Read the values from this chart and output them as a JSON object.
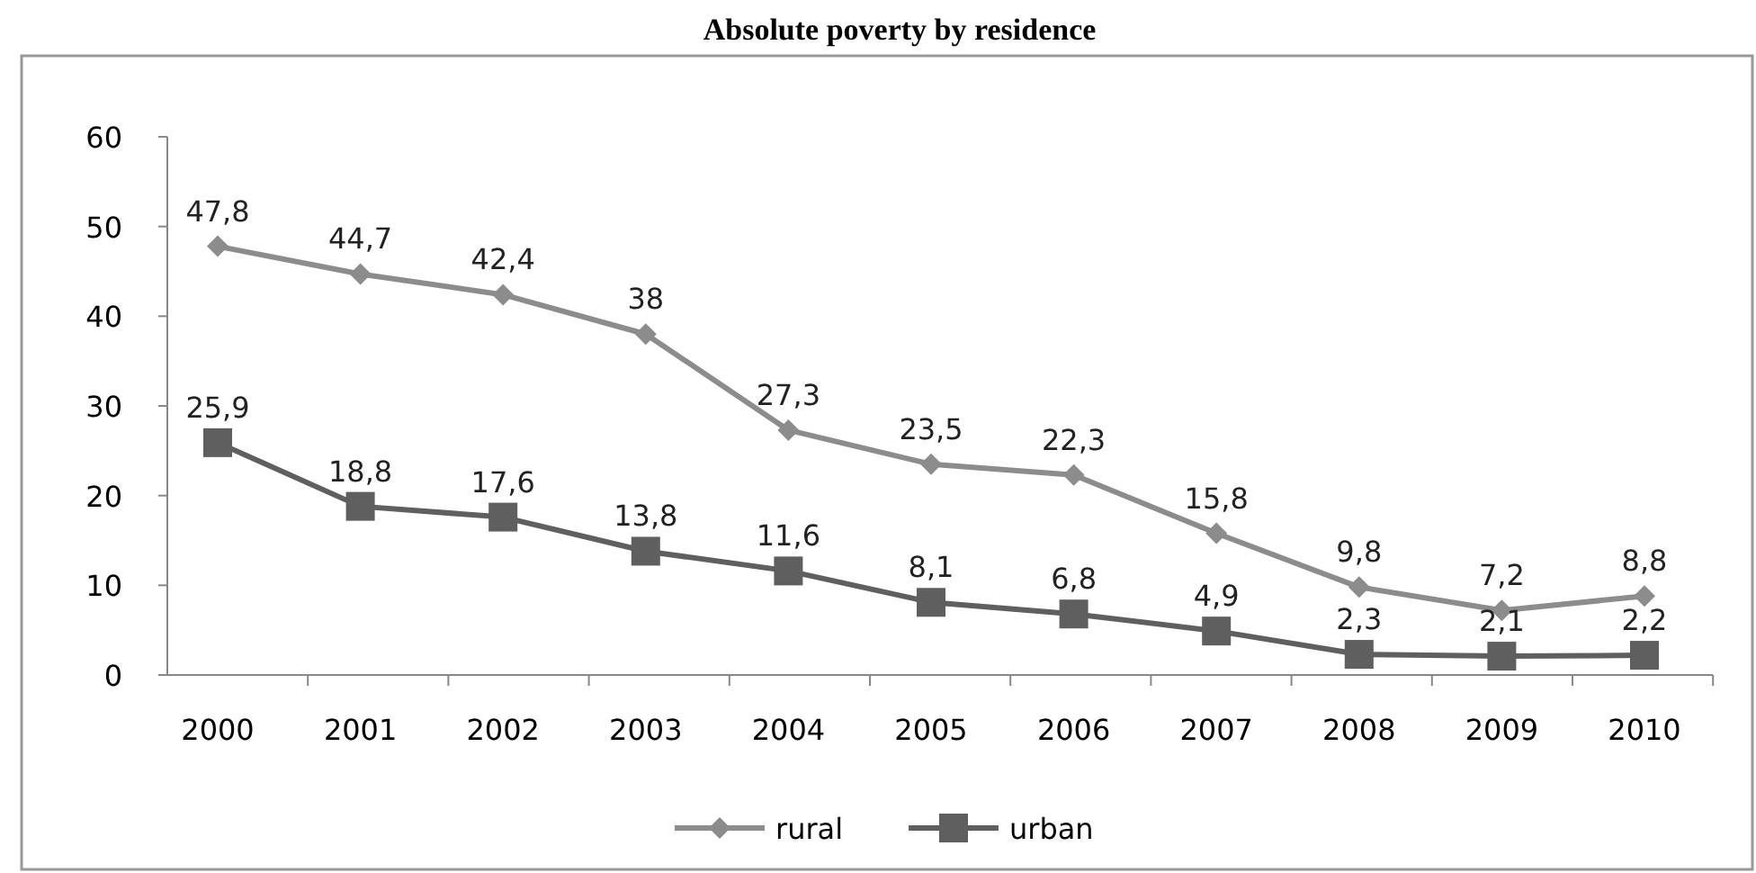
{
  "chart_data": {
    "type": "line",
    "title": "Absolute poverty by residence",
    "categories": [
      "2000",
      "2001",
      "2002",
      "2003",
      "2004",
      "2005",
      "2006",
      "2007",
      "2008",
      "2009",
      "2010"
    ],
    "series": [
      {
        "name": "rural",
        "color": "#8c8c8c",
        "marker": "diamond",
        "values": [
          47.8,
          44.7,
          42.4,
          38,
          27.3,
          23.5,
          22.3,
          15.8,
          9.8,
          7.2,
          8.8
        ],
        "value_labels": [
          "47,8",
          "44,7",
          "42,4",
          "38",
          "27,3",
          "23,5",
          "22,3",
          "15,8",
          "9,8",
          "7,2",
          "8,8"
        ]
      },
      {
        "name": "urban",
        "color": "#5f5f5f",
        "marker": "square",
        "values": [
          25.9,
          18.8,
          17.6,
          13.8,
          11.6,
          8.1,
          6.8,
          4.9,
          2.3,
          2.1,
          2.2
        ],
        "value_labels": [
          "25,9",
          "18,8",
          "17,6",
          "13,8",
          "11,6",
          "8,1",
          "6,8",
          "4,9",
          "2,3",
          "2,1",
          "2,2"
        ]
      }
    ],
    "ylim": [
      0,
      60
    ],
    "yticks": [
      0,
      10,
      20,
      30,
      40,
      50,
      60
    ],
    "grid": false,
    "legend": "bottom"
  }
}
